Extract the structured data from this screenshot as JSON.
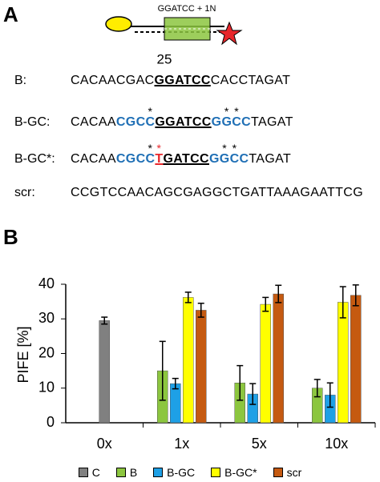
{
  "panel_a": {
    "label": "A",
    "diagram": {
      "top_label": "GGATCC + 1N",
      "bottom_label": "25"
    },
    "sequences": [
      {
        "name": "B:",
        "segments": [
          {
            "text": "CACAACGAC"
          },
          {
            "text": "GGATCC",
            "bold": true,
            "underline": true
          },
          {
            "text": "CACCTAGAT"
          }
        ]
      },
      {
        "name": "B-GC:",
        "segments": [
          {
            "text": "CACAA"
          },
          {
            "text": "CGC",
            "bold": true,
            "color": "#1f6fb5"
          },
          {
            "text": "C",
            "bold": true,
            "color": "#1f6fb5",
            "star": "*"
          },
          {
            "text": "GGATCC",
            "bold": true,
            "underline": true
          },
          {
            "text": "G",
            "bold": true,
            "color": "#1f6fb5"
          },
          {
            "text": "G",
            "bold": true,
            "color": "#1f6fb5",
            "star": "*"
          },
          {
            "text": "C",
            "bold": true,
            "color": "#1f6fb5",
            "star": "*"
          },
          {
            "text": "C",
            "bold": true,
            "color": "#1f6fb5"
          },
          {
            "text": "TAGAT"
          }
        ]
      },
      {
        "name": "B-GC*:",
        "segments": [
          {
            "text": "CACAA"
          },
          {
            "text": "CGC",
            "bold": true,
            "color": "#1f6fb5"
          },
          {
            "text": "C",
            "bold": true,
            "color": "#1f6fb5",
            "star": "*"
          },
          {
            "text": "T",
            "bold": true,
            "underline": true,
            "color": "#e8262b",
            "star": "*",
            "star_color": "#e8262b"
          },
          {
            "text": "GATCC",
            "bold": true,
            "underline": true
          },
          {
            "text": "G",
            "bold": true,
            "color": "#1f6fb5"
          },
          {
            "text": "G",
            "bold": true,
            "color": "#1f6fb5",
            "star": "*"
          },
          {
            "text": "C",
            "bold": true,
            "color": "#1f6fb5",
            "star": "*"
          },
          {
            "text": "C",
            "bold": true,
            "color": "#1f6fb5"
          },
          {
            "text": "TAGAT"
          }
        ]
      },
      {
        "name": "scr:",
        "segments": [
          {
            "text": "CCGTCCAACAGCGAGGCTGATTAAAGAATTCG"
          }
        ]
      }
    ]
  },
  "chart_data": {
    "type": "bar",
    "panel_label": "B",
    "y_label": "PIFE [%]",
    "categories": [
      "0x",
      "1x",
      "5x",
      "10x"
    ],
    "series": [
      {
        "name": "C",
        "color": "#808080",
        "values": [
          29.5,
          null,
          null,
          null
        ],
        "errors": [
          1,
          null,
          null,
          null
        ]
      },
      {
        "name": "B",
        "color": "#8cc63f",
        "values": [
          null,
          15,
          11.5,
          10
        ],
        "errors": [
          null,
          8.5,
          5,
          2.5
        ]
      },
      {
        "name": "B-GC",
        "color": "#1ea0e6",
        "values": [
          null,
          11.3,
          8.3,
          8
        ],
        "errors": [
          null,
          1.5,
          3,
          3.5
        ]
      },
      {
        "name": "B-GC*",
        "color": "#ffff00",
        "values": [
          null,
          36.2,
          34.2,
          34.8
        ],
        "errors": [
          null,
          1.5,
          2,
          4.5
        ]
      },
      {
        "name": "scr",
        "color": "#c55a11",
        "values": [
          null,
          32.5,
          37.2,
          36.8
        ],
        "errors": [
          null,
          2,
          2.5,
          3
        ]
      }
    ],
    "ylim": [
      0,
      40
    ],
    "yticks": [
      0,
      10,
      20,
      30,
      40
    ],
    "grid": false
  }
}
